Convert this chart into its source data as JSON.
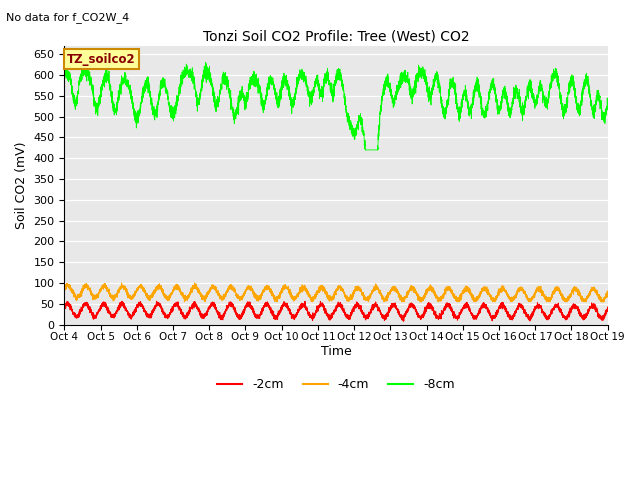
{
  "title": "Tonzi Soil CO2 Profile: Tree (West) CO2",
  "no_data_text": "No data for f_CO2W_4",
  "ylabel": "Soil CO2 (mV)",
  "xlabel": "Time",
  "legend_box_label": "TZ_soilco2",
  "ylim": [
    0,
    670
  ],
  "yticks": [
    0,
    50,
    100,
    150,
    200,
    250,
    300,
    350,
    400,
    450,
    500,
    550,
    600,
    650
  ],
  "xtick_labels": [
    "Oct 4",
    "Oct 5",
    "Oct 6",
    "Oct 7",
    "Oct 8",
    "Oct 9",
    "Oct 10",
    "Oct 11",
    "Oct 12",
    "Oct 13",
    "Oct 14",
    "Oct 15",
    "Oct 16",
    "Oct 17",
    "Oct 18",
    "Oct 19"
  ],
  "line_colors": [
    "#ff0000",
    "#ffa500",
    "#00ff00"
  ],
  "line_labels": [
    "-2cm",
    "-4cm",
    "-8cm"
  ],
  "background_color": "#e8e8e8",
  "figure_facecolor": "#ffffff",
  "legend_box_color": "#ffff99",
  "legend_box_edgecolor": "#cc8800",
  "legend_box_textcolor": "#880000"
}
